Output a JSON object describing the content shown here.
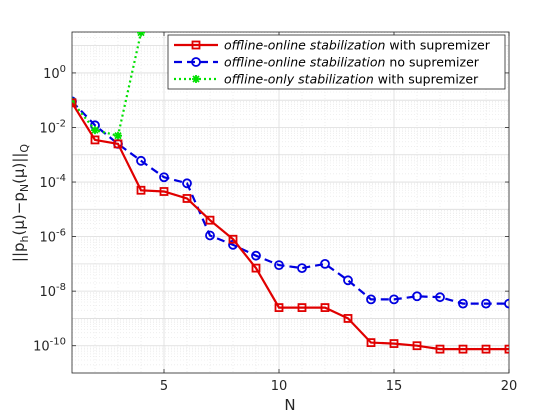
{
  "chart_data": {
    "type": "line",
    "xlabel": "N",
    "ylabel": "||p_h(μ)−p_N(μ)||_Q",
    "ylabel_parts": {
      "main": "||p",
      "sub1": "h",
      "mid1": "(μ)−p",
      "sub2": "N",
      "mid2": "(μ)||",
      "sub3": "Q"
    },
    "x_scale": "linear",
    "y_scale": "log",
    "xlim": [
      1,
      20
    ],
    "ylim_exp": [
      -11,
      1.5
    ],
    "ylim": [
      "1e-11",
      "3.16e1"
    ],
    "x_ticks": [
      5,
      10,
      15,
      20
    ],
    "y_ticks": [
      {
        "base": "10",
        "exp": "0",
        "value_exp": 0
      },
      {
        "base": "10",
        "exp": "-2",
        "value_exp": -2
      },
      {
        "base": "10",
        "exp": "-4",
        "value_exp": -4
      },
      {
        "base": "10",
        "exp": "-6",
        "value_exp": -6
      },
      {
        "base": "10",
        "exp": "-8",
        "value_exp": -8
      },
      {
        "base": "10",
        "exp": "-10",
        "value_exp": -10
      }
    ],
    "grid": true,
    "minor_grid": true,
    "legend_position": "top-right",
    "series": [
      {
        "name_italic": "offline-online stabilization",
        "name_rest": " with supremizer",
        "color": "#e00000",
        "line_style": "solid",
        "marker": "square",
        "x": [
          1,
          2,
          3,
          4,
          5,
          6,
          7,
          8,
          9,
          10,
          11,
          12,
          13,
          14,
          15,
          16,
          17,
          18,
          19,
          20
        ],
        "y": [
          0.08,
          0.0035,
          0.0025,
          5e-05,
          4.5e-05,
          2.5e-05,
          4e-06,
          8e-07,
          7e-08,
          2.5e-09,
          2.5e-09,
          2.5e-09,
          1e-09,
          1.3e-10,
          1.2e-10,
          1e-10,
          7.5e-11,
          7.5e-11,
          7.5e-11,
          7.5e-11
        ]
      },
      {
        "name_italic": "offline-online stabilization",
        "name_rest": " no supremizer",
        "color": "#0000e0",
        "line_style": "dashed",
        "marker": "circle",
        "x": [
          1,
          2,
          3,
          4,
          5,
          6,
          7,
          8,
          9,
          10,
          11,
          12,
          13,
          14,
          15,
          16,
          17,
          18,
          19,
          20
        ],
        "y": [
          0.09,
          0.012,
          0.0025,
          0.0006,
          0.00015,
          9e-05,
          1.1e-06,
          5e-07,
          2e-07,
          9e-08,
          7e-08,
          1e-07,
          2.5e-08,
          5e-09,
          5e-09,
          6.5e-09,
          6e-09,
          3.5e-09,
          3.5e-09,
          3.5e-09
        ]
      },
      {
        "name_italic": "offline-only stabilization",
        "name_rest": " with supremizer",
        "color": "#00e000",
        "line_style": "dotted",
        "marker": "asterisk",
        "x": [
          1,
          2,
          3,
          4
        ],
        "y": [
          0.09,
          0.008,
          0.005,
          30
        ]
      }
    ]
  }
}
